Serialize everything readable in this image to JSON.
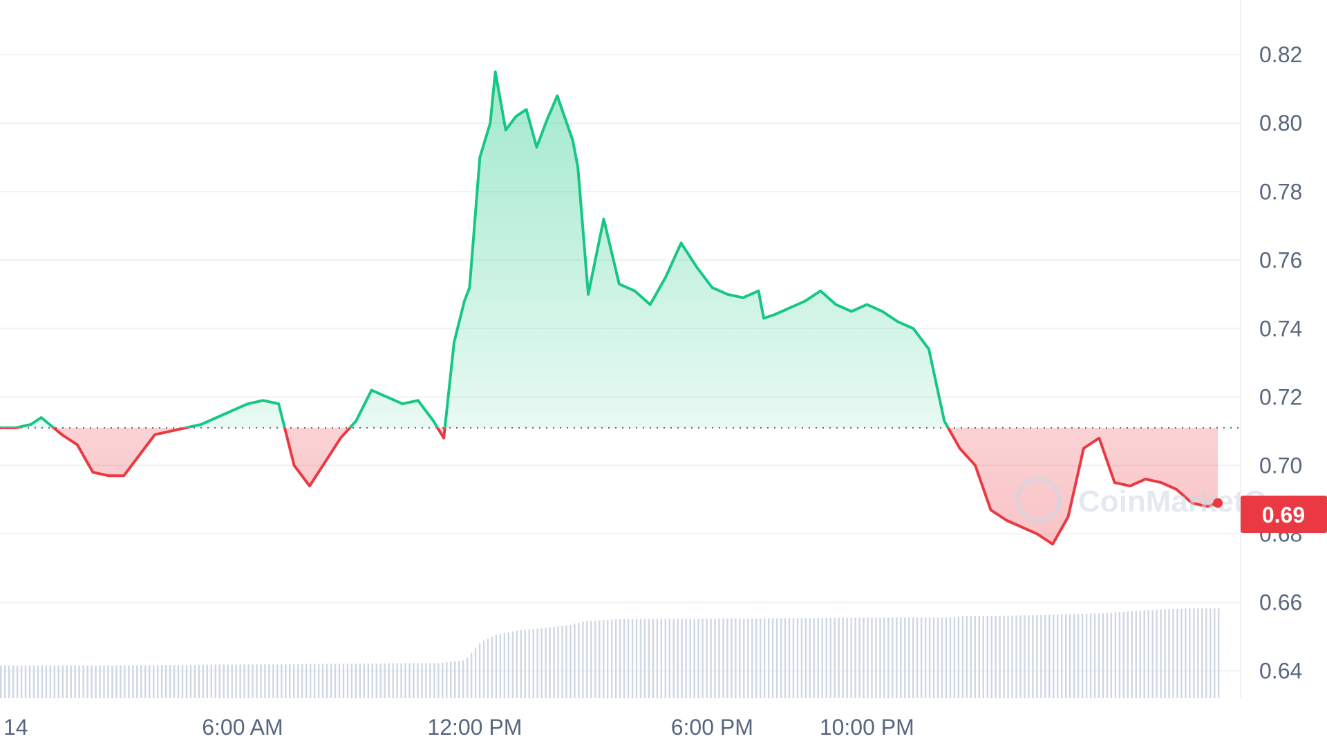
{
  "chart_data": {
    "type": "area",
    "x_ticks": [
      "14",
      "6:00 AM",
      "12:00 PM",
      "6:00 PM",
      "10:00 PM"
    ],
    "y_ticks": [
      "0.82",
      "0.80",
      "0.78",
      "0.76",
      "0.74",
      "0.72",
      "0.70",
      "0.68",
      "0.66",
      "0.64"
    ],
    "ylim": [
      0.632,
      0.836
    ],
    "x_range_hours": [
      0,
      23.6
    ],
    "reference_price": 0.711,
    "current_price_label": "0.69",
    "grid": true,
    "series": [
      {
        "x": [
          0,
          0.3,
          0.6,
          0.8,
          1.2,
          1.5,
          1.8,
          2.1,
          2.4,
          2.7,
          3.0,
          3.3,
          3.6,
          3.9,
          4.2,
          4.5,
          4.8,
          5.1,
          5.4,
          5.7,
          6.0,
          6.3,
          6.6,
          6.9,
          7.2,
          7.5,
          7.8,
          8.1,
          8.4,
          8.6,
          8.8,
          9.0,
          9.1,
          9.3,
          9.5,
          9.6,
          9.8,
          10.0,
          10.2,
          10.4,
          10.6,
          10.8,
          11.1,
          11.2,
          11.4,
          11.7,
          12.0,
          12.3,
          12.6,
          12.9,
          13.2,
          13.5,
          13.8,
          14.1,
          14.4,
          14.7,
          14.8,
          15.0,
          15.3,
          15.6,
          15.9,
          16.2,
          16.5,
          16.8,
          17.1,
          17.4,
          17.7,
          18.0,
          18.3,
          18.6,
          18.9,
          19.2,
          19.5,
          19.8,
          20.1,
          20.4,
          20.7,
          21.0,
          21.3,
          21.6,
          21.9,
          22.2,
          22.5,
          22.8,
          23.1,
          23.4,
          23.6
        ],
        "values": [
          0.711,
          0.711,
          0.712,
          0.714,
          0.709,
          0.706,
          0.698,
          0.697,
          0.697,
          0.703,
          0.709,
          0.71,
          0.711,
          0.712,
          0.714,
          0.716,
          0.718,
          0.719,
          0.718,
          0.7,
          0.694,
          0.701,
          0.708,
          0.713,
          0.722,
          0.72,
          0.718,
          0.719,
          0.713,
          0.708,
          0.736,
          0.748,
          0.752,
          0.79,
          0.8,
          0.815,
          0.798,
          0.802,
          0.804,
          0.793,
          0.801,
          0.808,
          0.795,
          0.787,
          0.75,
          0.772,
          0.753,
          0.751,
          0.747,
          0.755,
          0.765,
          0.758,
          0.752,
          0.75,
          0.749,
          0.751,
          0.743,
          0.744,
          0.746,
          0.748,
          0.751,
          0.747,
          0.745,
          0.747,
          0.745,
          0.742,
          0.74,
          0.734,
          0.713,
          0.705,
          0.7,
          0.687,
          0.684,
          0.682,
          0.68,
          0.677,
          0.685,
          0.705,
          0.708,
          0.695,
          0.694,
          0.696,
          0.695,
          0.693,
          0.689,
          0.688,
          0.689
        ]
      }
    ],
    "volume": {
      "x": [
        0,
        2,
        4,
        6,
        8,
        8.5,
        9.0,
        9.3,
        9.6,
        10.0,
        10.5,
        11.0,
        11.3,
        12.0,
        15.0,
        17.0,
        18.4,
        18.6,
        19.0,
        20.0,
        21.0,
        21.5,
        22.0,
        23.0,
        23.6
      ],
      "values": [
        0.043,
        0.043,
        0.044,
        0.045,
        0.046,
        0.046,
        0.05,
        0.074,
        0.083,
        0.089,
        0.092,
        0.096,
        0.101,
        0.104,
        0.105,
        0.106,
        0.106,
        0.108,
        0.108,
        0.109,
        0.111,
        0.112,
        0.115,
        0.118,
        0.118
      ]
    }
  },
  "watermark_text": "CoinMarketCap",
  "colors": {
    "up": "#16c784",
    "down": "#ea3943",
    "grid": "#eff2f5",
    "axis_text": "#58667e",
    "volume_bar": "#cfd6e4",
    "price_label_bg": "#ea3943"
  }
}
